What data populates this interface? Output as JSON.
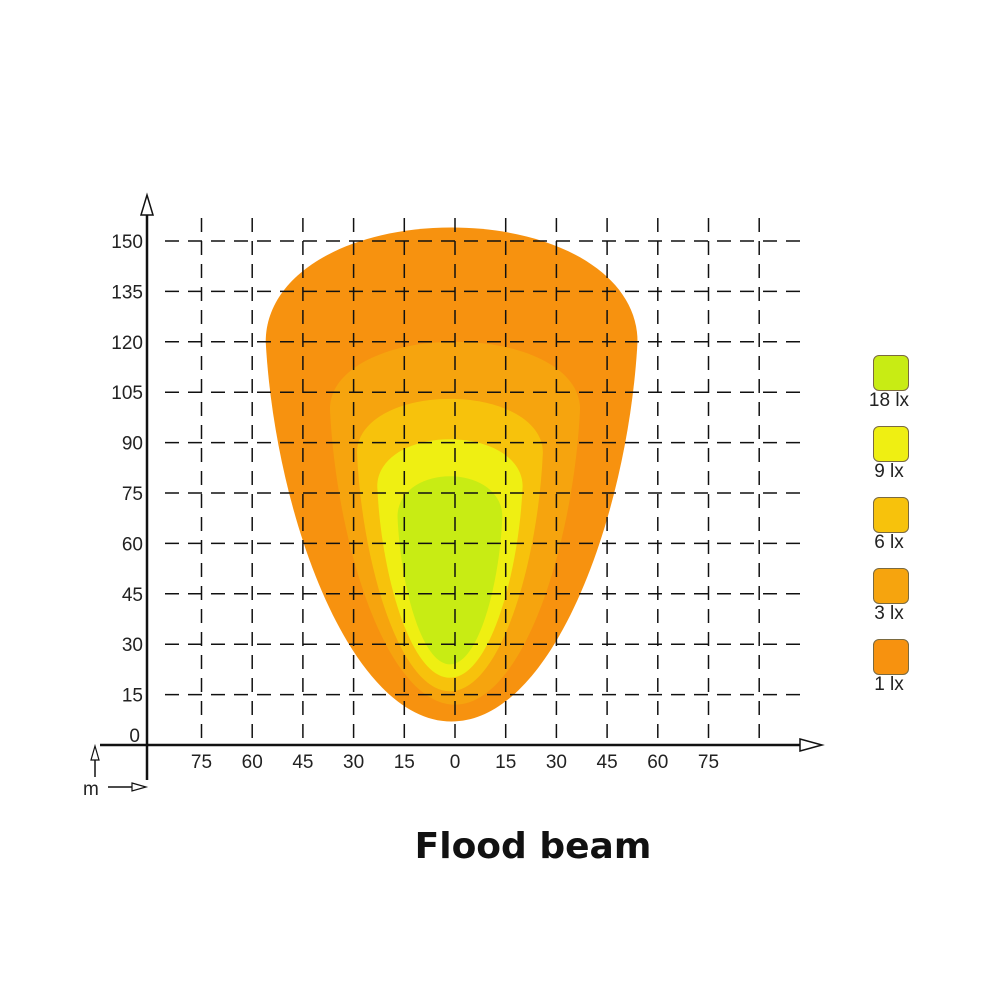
{
  "chart_data": {
    "type": "contour",
    "title": "Flood beam",
    "xlabel": "m",
    "x_ticks": [
      "75",
      "60",
      "45",
      "30",
      "15",
      "0",
      "15",
      "30",
      "45",
      "60",
      "75"
    ],
    "y_ticks": [
      "0",
      "15",
      "30",
      "45",
      "60",
      "75",
      "90",
      "105",
      "120",
      "135",
      "150"
    ],
    "xlim": [
      -90,
      110
    ],
    "ylim": [
      0,
      160
    ],
    "grid": true,
    "legend_position": "right",
    "contours": [
      {
        "label": "1 lx",
        "color": "#F7920F",
        "x_min": -56,
        "x_max": 54,
        "y_min": 7,
        "y_max": 154,
        "y_widest": 120
      },
      {
        "label": "3 lx",
        "color": "#F6A40E",
        "x_min": -37,
        "x_max": 37,
        "y_min": 12,
        "y_max": 120,
        "y_widest": 100
      },
      {
        "label": "6 lx",
        "color": "#F7C20C",
        "x_min": -29,
        "x_max": 26,
        "y_min": 16,
        "y_max": 103,
        "y_widest": 87
      },
      {
        "label": "9 lx",
        "color": "#EFEF12",
        "x_min": -23,
        "x_max": 20,
        "y_min": 20,
        "y_max": 91,
        "y_widest": 77
      },
      {
        "label": "18 lx",
        "color": "#C8EC14",
        "x_min": -17,
        "x_max": 14,
        "y_min": 24,
        "y_max": 80,
        "y_widest": 68
      }
    ],
    "legend": [
      {
        "label": "18 lx",
        "color": "#C8EC14"
      },
      {
        "label": "9 lx",
        "color": "#EFEF12"
      },
      {
        "label": "6 lx",
        "color": "#F7C20C"
      },
      {
        "label": "3 lx",
        "color": "#F6A40E"
      },
      {
        "label": "1 lx",
        "color": "#F7920F"
      }
    ]
  }
}
